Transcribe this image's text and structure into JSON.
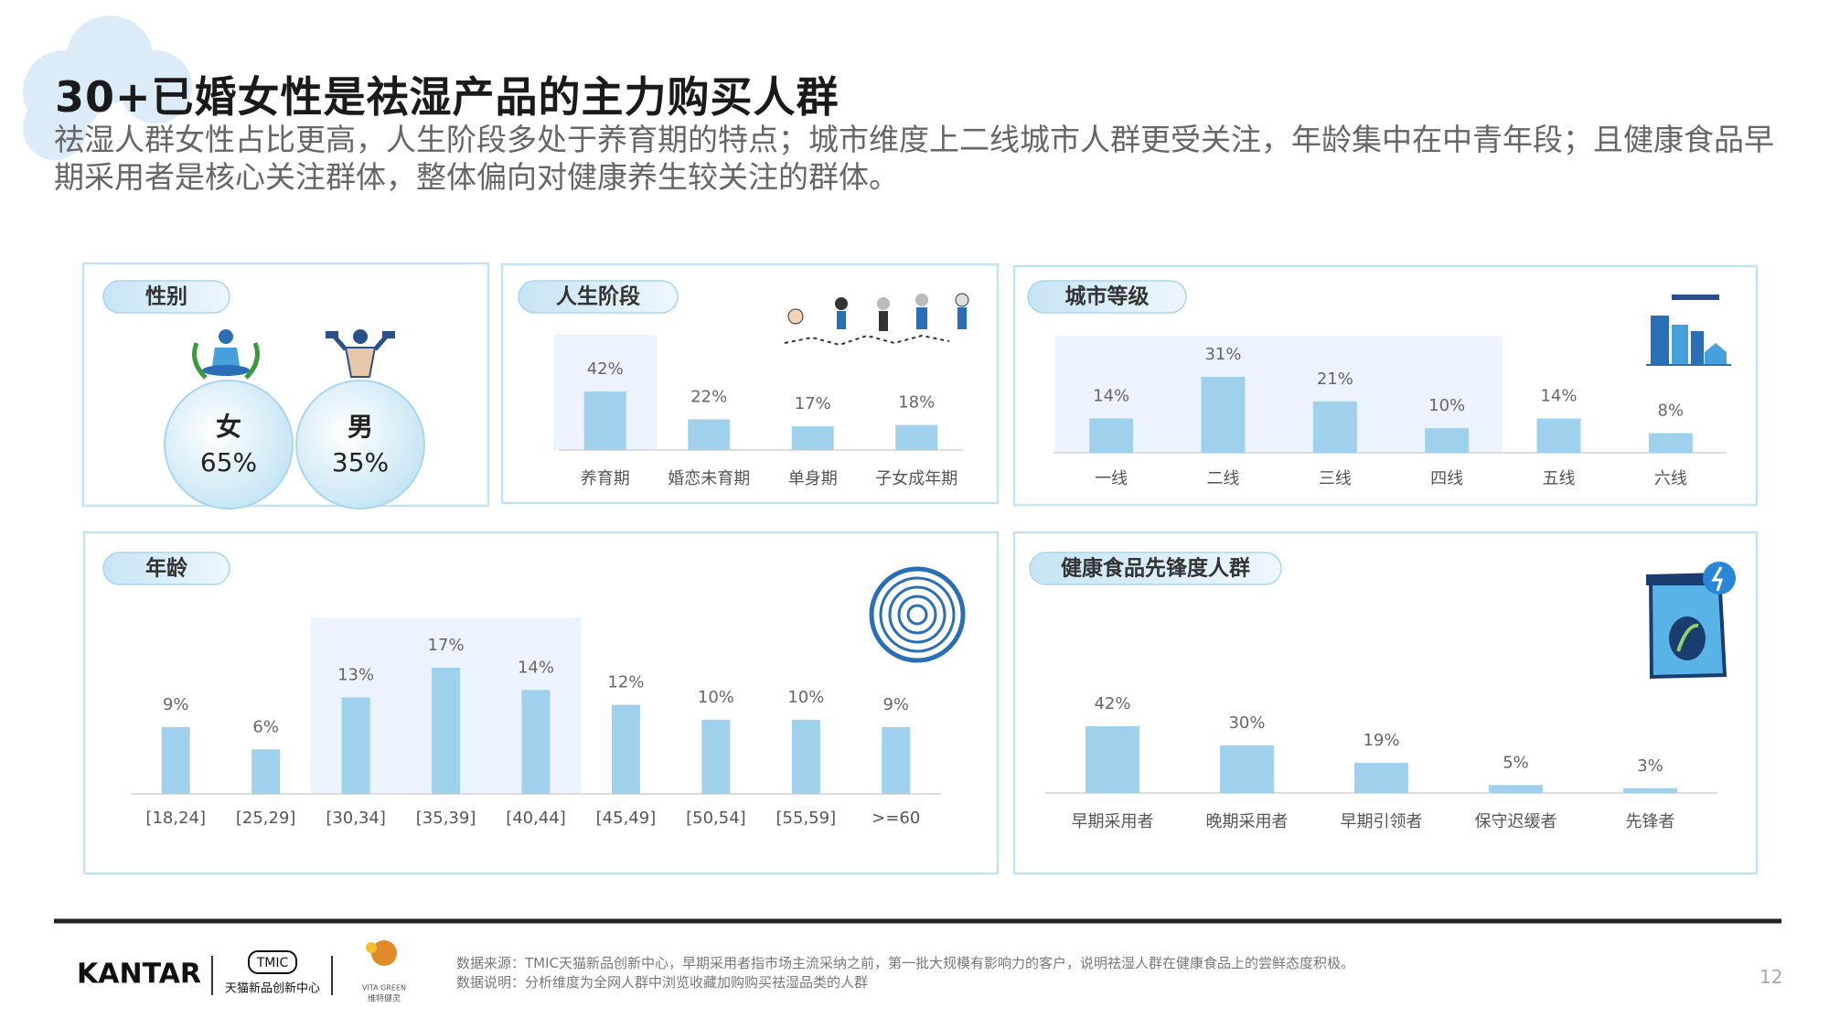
{
  "header": {
    "title": "30+已婚女性是祛湿产品的主力购买人群",
    "subtitle": "祛湿人群女性占比更高，人生阶段多处于养育期的特点；城市维度上二线城市人群更受关注，年龄集中在中青年段；且健康食品早期采用者是核心关注群体，整体偏向对健康养生较关注的群体。"
  },
  "chart_data": [
    {
      "type": "bubble",
      "title": "性别",
      "categories": [
        "女",
        "男"
      ],
      "values": [
        65,
        35
      ],
      "value_labels": [
        "65%",
        "35%"
      ],
      "color": "#d6eef9"
    },
    {
      "type": "bar",
      "title": "人生阶段",
      "categories": [
        "养育期",
        "婚恋未育期",
        "单身期",
        "子女成年期"
      ],
      "values": [
        42,
        22,
        17,
        18
      ],
      "value_labels": [
        "42%",
        "22%",
        "17%",
        "18%"
      ],
      "color": "#9fd0ec",
      "highlight": {
        "from": 0,
        "to": 0
      }
    },
    {
      "type": "bar",
      "title": "城市等级",
      "categories": [
        "一线",
        "二线",
        "三线",
        "四线",
        "五线",
        "六线"
      ],
      "values": [
        14,
        31,
        21,
        10,
        14,
        8
      ],
      "value_labels": [
        "14%",
        "31%",
        "21%",
        "10%",
        "14%",
        "8%"
      ],
      "color": "#9fd0ec",
      "highlight": {
        "from": 0,
        "to": 3
      }
    },
    {
      "type": "bar",
      "title": "年龄",
      "categories": [
        "[18,24]",
        "[25,29]",
        "[30,34]",
        "[35,39]",
        "[40,44]",
        "[45,49]",
        "[50,54]",
        "[55,59]",
        ">=60"
      ],
      "values": [
        9,
        6,
        13,
        17,
        14,
        12,
        10,
        10,
        9
      ],
      "value_labels": [
        "9%",
        "6%",
        "13%",
        "17%",
        "14%",
        "12%",
        "10%",
        "10%",
        "9%"
      ],
      "color": "#9fd0ec",
      "highlight": {
        "from": 2,
        "to": 4
      }
    },
    {
      "type": "bar",
      "title": "健康食品先锋度人群",
      "categories": [
        "早期采用者",
        "晚期采用者",
        "早期引领者",
        "保守迟缓者",
        "先锋者"
      ],
      "values": [
        42,
        30,
        19,
        5,
        3
      ],
      "value_labels": [
        "42%",
        "30%",
        "19%",
        "5%",
        "3%"
      ],
      "color": "#9fd0ec"
    }
  ],
  "footer": {
    "logo_kantar": "KANTAR",
    "logo_tmic": "TMIC",
    "logo_tmic_name": "天猫新品创新中心",
    "logo_vita": "VITA GREEN",
    "logo_vita_name": "维特健灵",
    "notes": [
      "数据来源：TMIC天猫新品创新中心，早期采用者指市场主流采纳之前，第一批大规模有影响力的客户，说明祛湿人群在健康食品上的尝鲜态度积极。",
      "数据说明：分析维度为全网人群中浏览收藏加购购买祛湿品类的人群"
    ],
    "page_number": "12"
  }
}
